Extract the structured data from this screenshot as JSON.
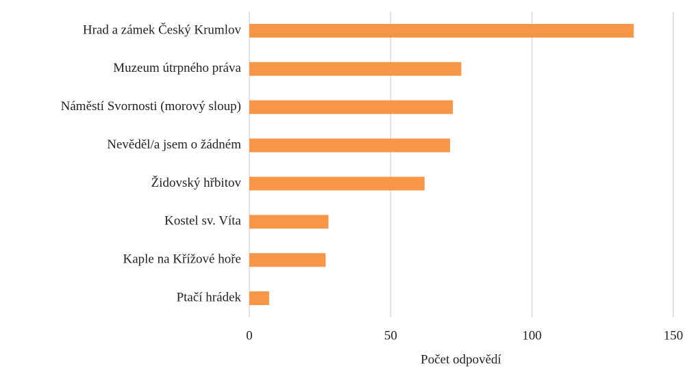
{
  "chart_data": {
    "type": "barh",
    "categories": [
      "Hrad a zámek Český Krumlov",
      "Muzeum útrpného práva",
      "Náměstí Svornosti (morový sloup)",
      "Nevěděl/a jsem o žádném",
      "Židovský hřbitov",
      "Kostel sv. Víta",
      "Kaple na Křížové hoře",
      "Ptačí hrádek"
    ],
    "values": [
      136,
      75,
      72,
      71,
      62,
      28,
      27,
      7
    ],
    "color": "#f79646",
    "xlabel": "Počet odpovědí",
    "xlim": [
      0,
      150
    ],
    "xticks": [
      0,
      50,
      100,
      150
    ],
    "grid": true
  }
}
